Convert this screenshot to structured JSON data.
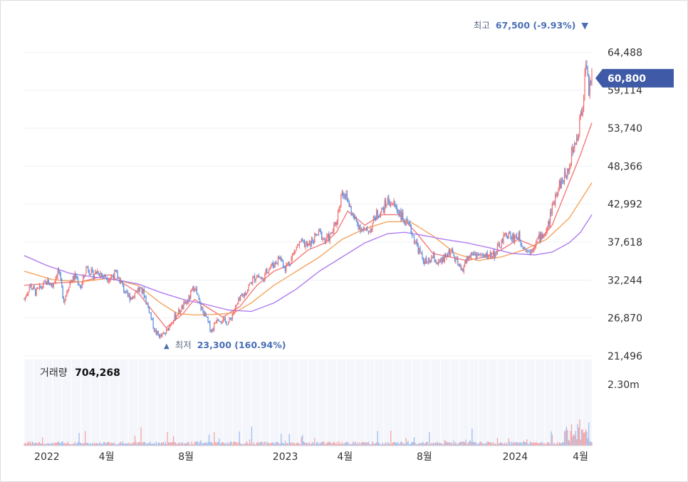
{
  "chart_data": {
    "type": "candlestick",
    "y_ticks": [
      {
        "value": 64488,
        "label": "64,488"
      },
      {
        "value": 59114,
        "label": "59,114"
      },
      {
        "value": 53740,
        "label": "53,740"
      },
      {
        "value": 48366,
        "label": "48,366"
      },
      {
        "value": 42992,
        "label": "42,992"
      },
      {
        "value": 37618,
        "label": "37,618"
      },
      {
        "value": 32244,
        "label": "32,244"
      },
      {
        "value": 26870,
        "label": "26,870"
      },
      {
        "value": 21496,
        "label": "21,496"
      }
    ],
    "ylim": [
      21496,
      69862
    ],
    "x_ticks": [
      {
        "label": "2022",
        "t": 0.04
      },
      {
        "label": "4월",
        "t": 0.145
      },
      {
        "label": "8월",
        "t": 0.285
      },
      {
        "label": "2023",
        "t": 0.46
      },
      {
        "label": "4월",
        "t": 0.565
      },
      {
        "label": "8월",
        "t": 0.705
      },
      {
        "label": "2024",
        "t": 0.865
      },
      {
        "label": "4월",
        "t": 0.98
      }
    ],
    "price_path": [
      [
        0.0,
        29500
      ],
      [
        0.01,
        31500
      ],
      [
        0.02,
        30500
      ],
      [
        0.03,
        31200
      ],
      [
        0.04,
        32000
      ],
      [
        0.05,
        31500
      ],
      [
        0.06,
        33800
      ],
      [
        0.07,
        29300
      ],
      [
        0.08,
        32000
      ],
      [
        0.09,
        32800
      ],
      [
        0.1,
        31200
      ],
      [
        0.11,
        34200
      ],
      [
        0.12,
        33000
      ],
      [
        0.13,
        33500
      ],
      [
        0.14,
        32800
      ],
      [
        0.15,
        32500
      ],
      [
        0.16,
        33200
      ],
      [
        0.17,
        32000
      ],
      [
        0.18,
        30000
      ],
      [
        0.19,
        29800
      ],
      [
        0.2,
        31000
      ],
      [
        0.21,
        30500
      ],
      [
        0.22,
        28000
      ],
      [
        0.23,
        25000
      ],
      [
        0.24,
        24200
      ],
      [
        0.25,
        24800
      ],
      [
        0.26,
        26500
      ],
      [
        0.27,
        27500
      ],
      [
        0.28,
        28500
      ],
      [
        0.29,
        29500
      ],
      [
        0.3,
        31500
      ],
      [
        0.31,
        28500
      ],
      [
        0.32,
        27000
      ],
      [
        0.33,
        25000
      ],
      [
        0.34,
        27000
      ],
      [
        0.35,
        26500
      ],
      [
        0.36,
        26200
      ],
      [
        0.37,
        28000
      ],
      [
        0.38,
        29500
      ],
      [
        0.39,
        30500
      ],
      [
        0.4,
        32000
      ],
      [
        0.41,
        33000
      ],
      [
        0.42,
        32200
      ],
      [
        0.43,
        34000
      ],
      [
        0.44,
        34500
      ],
      [
        0.45,
        35500
      ],
      [
        0.46,
        34000
      ],
      [
        0.47,
        35200
      ],
      [
        0.48,
        37000
      ],
      [
        0.49,
        37500
      ],
      [
        0.5,
        37000
      ],
      [
        0.51,
        38000
      ],
      [
        0.52,
        39000
      ],
      [
        0.53,
        37800
      ],
      [
        0.54,
        38500
      ],
      [
        0.55,
        40500
      ],
      [
        0.56,
        45000
      ],
      [
        0.57,
        43500
      ],
      [
        0.58,
        41000
      ],
      [
        0.59,
        40000
      ],
      [
        0.6,
        39000
      ],
      [
        0.61,
        39500
      ],
      [
        0.62,
        41500
      ],
      [
        0.63,
        42000
      ],
      [
        0.64,
        43500
      ],
      [
        0.65,
        43000
      ],
      [
        0.66,
        42000
      ],
      [
        0.67,
        40500
      ],
      [
        0.68,
        39500
      ],
      [
        0.69,
        37500
      ],
      [
        0.7,
        35500
      ],
      [
        0.71,
        34500
      ],
      [
        0.72,
        35500
      ],
      [
        0.73,
        34500
      ],
      [
        0.74,
        35200
      ],
      [
        0.75,
        36500
      ],
      [
        0.76,
        35000
      ],
      [
        0.77,
        33500
      ],
      [
        0.78,
        35200
      ],
      [
        0.79,
        36000
      ],
      [
        0.8,
        35800
      ],
      [
        0.81,
        35500
      ],
      [
        0.82,
        35800
      ],
      [
        0.83,
        36000
      ],
      [
        0.84,
        37500
      ],
      [
        0.85,
        38800
      ],
      [
        0.86,
        38200
      ],
      [
        0.87,
        38500
      ],
      [
        0.88,
        37000
      ],
      [
        0.89,
        36200
      ],
      [
        0.9,
        37500
      ],
      [
        0.91,
        38500
      ],
      [
        0.92,
        39000
      ],
      [
        0.93,
        42500
      ],
      [
        0.94,
        45500
      ],
      [
        0.95,
        46500
      ],
      [
        0.96,
        48500
      ],
      [
        0.965,
        50500
      ],
      [
        0.975,
        52500
      ],
      [
        0.985,
        58000
      ],
      [
        0.99,
        64000
      ],
      [
        0.995,
        59000
      ],
      [
        1.0,
        61500
      ]
    ],
    "ma_short": [
      [
        0.0,
        31500
      ],
      [
        0.05,
        31800
      ],
      [
        0.1,
        32000
      ],
      [
        0.15,
        33000
      ],
      [
        0.2,
        30500
      ],
      [
        0.22,
        28500
      ],
      [
        0.25,
        25500
      ],
      [
        0.28,
        27500
      ],
      [
        0.3,
        29500
      ],
      [
        0.32,
        28500
      ],
      [
        0.35,
        27000
      ],
      [
        0.38,
        28500
      ],
      [
        0.41,
        31500
      ],
      [
        0.44,
        33500
      ],
      [
        0.47,
        34500
      ],
      [
        0.5,
        36500
      ],
      [
        0.53,
        37500
      ],
      [
        0.55,
        39000
      ],
      [
        0.57,
        42000
      ],
      [
        0.6,
        40000
      ],
      [
        0.63,
        41500
      ],
      [
        0.66,
        41500
      ],
      [
        0.69,
        39000
      ],
      [
        0.72,
        36000
      ],
      [
        0.75,
        35500
      ],
      [
        0.78,
        35000
      ],
      [
        0.81,
        35500
      ],
      [
        0.84,
        36500
      ],
      [
        0.87,
        38000
      ],
      [
        0.9,
        37000
      ],
      [
        0.93,
        40000
      ],
      [
        0.96,
        46000
      ],
      [
        0.98,
        50000
      ],
      [
        1.0,
        54500
      ]
    ],
    "ma_mid": [
      [
        0.0,
        33500
      ],
      [
        0.05,
        32300
      ],
      [
        0.1,
        32000
      ],
      [
        0.15,
        32500
      ],
      [
        0.2,
        31500
      ],
      [
        0.24,
        29000
      ],
      [
        0.27,
        27500
      ],
      [
        0.3,
        27300
      ],
      [
        0.34,
        27400
      ],
      [
        0.37,
        27600
      ],
      [
        0.4,
        29000
      ],
      [
        0.44,
        31500
      ],
      [
        0.48,
        33500
      ],
      [
        0.52,
        35500
      ],
      [
        0.56,
        38000
      ],
      [
        0.6,
        39500
      ],
      [
        0.64,
        40500
      ],
      [
        0.68,
        40500
      ],
      [
        0.72,
        38500
      ],
      [
        0.76,
        36000
      ],
      [
        0.8,
        35000
      ],
      [
        0.84,
        35500
      ],
      [
        0.88,
        36500
      ],
      [
        0.92,
        38000
      ],
      [
        0.96,
        41000
      ],
      [
        1.0,
        46000
      ]
    ],
    "ma_long": [
      [
        0.0,
        35700
      ],
      [
        0.04,
        34300
      ],
      [
        0.08,
        33200
      ],
      [
        0.12,
        32700
      ],
      [
        0.16,
        32300
      ],
      [
        0.2,
        31700
      ],
      [
        0.24,
        30500
      ],
      [
        0.28,
        29500
      ],
      [
        0.32,
        28800
      ],
      [
        0.36,
        28000
      ],
      [
        0.4,
        27800
      ],
      [
        0.44,
        29000
      ],
      [
        0.48,
        31000
      ],
      [
        0.52,
        33500
      ],
      [
        0.56,
        35500
      ],
      [
        0.6,
        37500
      ],
      [
        0.64,
        38800
      ],
      [
        0.67,
        39000
      ],
      [
        0.7,
        38600
      ],
      [
        0.74,
        38000
      ],
      [
        0.78,
        37500
      ],
      [
        0.82,
        36800
      ],
      [
        0.86,
        36000
      ],
      [
        0.9,
        35800
      ],
      [
        0.93,
        36200
      ],
      [
        0.96,
        37500
      ],
      [
        0.98,
        39000
      ],
      [
        1.0,
        41500
      ]
    ],
    "volume_max": 2300000,
    "volume_ticks": [
      {
        "value": 2300000,
        "label": "2.30m"
      }
    ]
  },
  "annotations": {
    "high_prefix": "최고",
    "high_value": "67,500 (-9.93%)",
    "high_price": 67500,
    "high_arrow": "▼",
    "low_prefix": "최저",
    "low_value": "23,300 (160.94%)",
    "low_price": 23300,
    "low_arrow": "▲",
    "current_price_label": "60,800",
    "current_price": 60800
  },
  "volume": {
    "label": "거래량",
    "value": "704,268"
  },
  "colors": {
    "up": "#f26d6d",
    "down": "#5a8ee0",
    "ma_short": "#f47a7a",
    "ma_mid": "#f4a45e",
    "ma_long": "#b07cf0",
    "volume_up": "#f7a3a3",
    "volume_down": "#9dbff0",
    "current_badge": "#3f5aa6",
    "annotation_text": "#5d6a84",
    "annotation_value": "#4a6fb5"
  }
}
